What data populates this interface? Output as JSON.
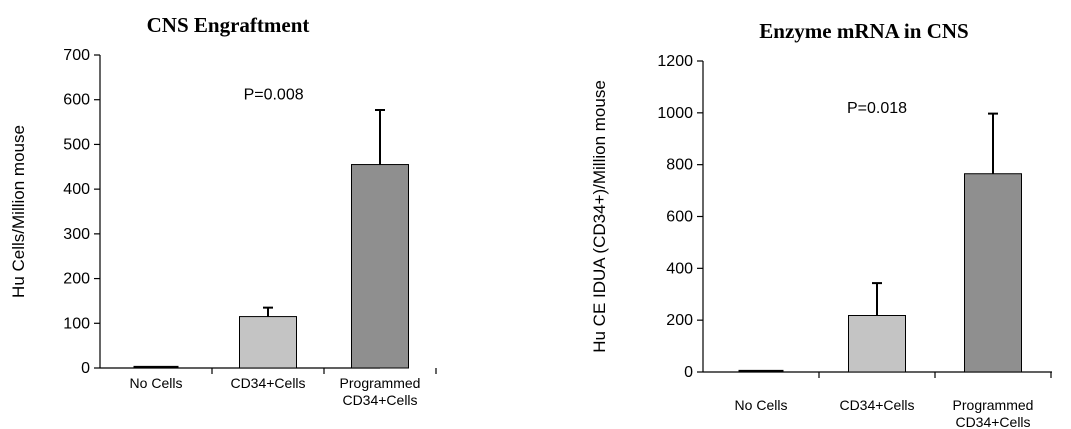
{
  "chart_data": [
    {
      "type": "bar",
      "title": "CNS Engraftment",
      "ylabel": "Hu Cells/Million mouse",
      "xlabel": "",
      "ylim": [
        0,
        700
      ],
      "yticks": [
        0,
        100,
        200,
        300,
        400,
        500,
        600,
        700
      ],
      "categories": [
        {
          "lines": [
            "No Cells"
          ]
        },
        {
          "lines": [
            "CD34+Cells"
          ]
        },
        {
          "lines": [
            "Programmed",
            "CD34+Cells"
          ]
        }
      ],
      "values": [
        0,
        115,
        455
      ],
      "error_plus": [
        0,
        20,
        122
      ],
      "bar_colors": [
        "#ffffff",
        "#c4c4c4",
        "#8f8f8f"
      ],
      "annotation": {
        "text": "P=0.008",
        "x_category": 1.55,
        "y": 600
      },
      "grid": false,
      "legend": "none"
    },
    {
      "type": "bar",
      "title": "Enzyme mRNA in CNS",
      "ylabel": "Hu CE IDUA (CD34+)/Million mouse",
      "xlabel": "",
      "ylim": [
        0,
        1200
      ],
      "yticks": [
        0,
        200,
        400,
        600,
        800,
        1000,
        1200
      ],
      "categories": [
        {
          "lines": [
            "No Cells"
          ]
        },
        {
          "lines": [
            "CD34+Cells"
          ]
        },
        {
          "lines": [
            "Programmed",
            "CD34+Cells"
          ]
        }
      ],
      "values": [
        0,
        218,
        765
      ],
      "error_plus": [
        0,
        125,
        232
      ],
      "bar_colors": [
        "#ffffff",
        "#c4c4c4",
        "#8f8f8f"
      ],
      "annotation": {
        "text": "P=0.018",
        "x_category": 1.5,
        "y": 1000
      },
      "grid": false,
      "legend": "none"
    }
  ]
}
